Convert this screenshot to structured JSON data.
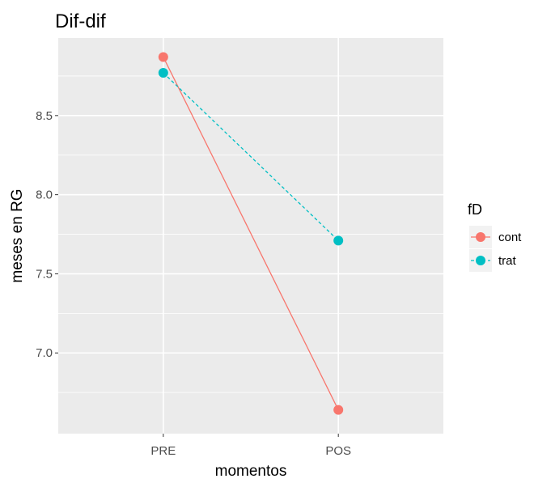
{
  "chart_data": {
    "type": "line",
    "title": "Dif-dif",
    "xlabel": "momentos",
    "ylabel": "meses en RG",
    "categories": [
      "PRE",
      "POS"
    ],
    "ylim": [
      6.49,
      8.99
    ],
    "y_ticks": [
      7.0,
      7.5,
      8.0,
      8.5
    ],
    "y_tick_labels": [
      "7.0",
      "7.5",
      "8.0",
      "8.5"
    ],
    "grid": true,
    "legend_title": "fD",
    "legend_position": "right",
    "series": [
      {
        "name": "cont",
        "values": [
          8.87,
          6.64
        ],
        "color": "#F8766D",
        "line_style": "solid"
      },
      {
        "name": "trat",
        "values": [
          8.77,
          7.71
        ],
        "color": "#00BFC4",
        "line_style": "dashed"
      }
    ],
    "panel_background": "#EBEBEB",
    "grid_color": "#FFFFFF"
  }
}
